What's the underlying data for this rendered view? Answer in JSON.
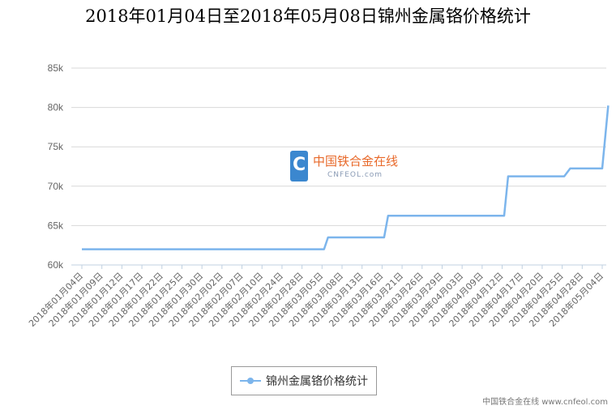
{
  "chart_data": {
    "type": "line",
    "title": "2018年01月04日至2018年05月08日锦州金属铬价格统计",
    "ylim": [
      60000,
      85000
    ],
    "y_ticks": [
      {
        "value": 60000,
        "label": "60k"
      },
      {
        "value": 65000,
        "label": "65k"
      },
      {
        "value": 70000,
        "label": "70k"
      },
      {
        "value": 75000,
        "label": "75k"
      },
      {
        "value": 80000,
        "label": "80k"
      },
      {
        "value": 85000,
        "label": "85k"
      }
    ],
    "x_labels": [
      "2018年01月04日",
      "2018年01月09日",
      "2018年01月12日",
      "2018年01月17日",
      "2018年01月22日",
      "2018年01月25日",
      "2018年01月30日",
      "2018年02月02日",
      "2018年02月07日",
      "2018年02月10日",
      "2018年02月24日",
      "2018年02月28日",
      "2018年03月05日",
      "2018年03月08日",
      "2018年03月13日",
      "2018年03月16日",
      "2018年03月21日",
      "2018年03月26日",
      "2018年03月29日",
      "2018年04月03日",
      "2018年04月09日",
      "2018年04月12日",
      "2018年04月17日",
      "2018年04月20日",
      "2018年04月25日",
      "2018年04月28日",
      "2018年05月04日"
    ],
    "grid": "horizontal",
    "legend_position": "bottom",
    "series": [
      {
        "name": "锦州金属铬价格统计",
        "color": "#7cb5ec",
        "points": [
          {
            "x": 0,
            "y": 62000
          },
          {
            "x": 12.1,
            "y": 62000
          },
          {
            "x": 12.3,
            "y": 63500
          },
          {
            "x": 15.1,
            "y": 63500
          },
          {
            "x": 15.3,
            "y": 66250
          },
          {
            "x": 21.1,
            "y": 66250
          },
          {
            "x": 21.3,
            "y": 71250
          },
          {
            "x": 24.1,
            "y": 71250
          },
          {
            "x": 24.4,
            "y": 72250
          },
          {
            "x": 26.0,
            "y": 72250
          },
          {
            "x": 26.3,
            "y": 80250
          }
        ]
      }
    ]
  },
  "legend": {
    "label": "锦州金属铬价格统计",
    "color": "#7cb5ec"
  },
  "watermark": {
    "name_cn": "中国铁合金在线",
    "name_en": "CNFEOL.com"
  },
  "footer": {
    "credit": "中国铁合金在线 www.cnfeol.com"
  }
}
